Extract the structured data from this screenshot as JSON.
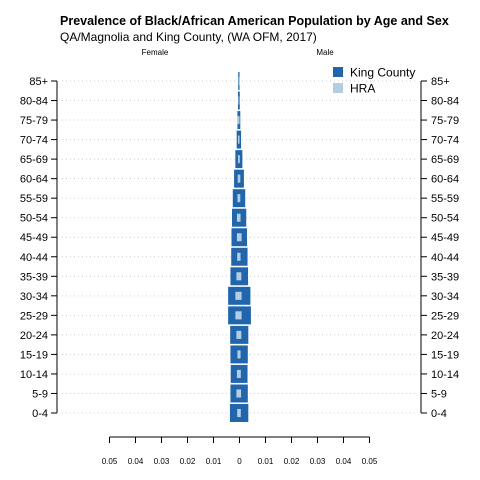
{
  "chart_data": {
    "type": "bar",
    "orientation": "horizontal-pyramid",
    "title": "Prevalence of Black/African American Population by Age and Sex",
    "subtitle": "QA/Magnolia and King County, (WA OFM, 2017)",
    "left_label": "Female",
    "right_label": "Male",
    "categories": [
      "0-4",
      "5-9",
      "10-14",
      "15-19",
      "20-24",
      "25-29",
      "30-34",
      "35-39",
      "40-44",
      "45-49",
      "50-54",
      "55-59",
      "60-64",
      "65-69",
      "70-74",
      "75-79",
      "80-84",
      "85+"
    ],
    "series": [
      {
        "name": "King County",
        "color": "#2166ac",
        "female": [
          0.0035,
          0.0033,
          0.0032,
          0.0033,
          0.0034,
          0.0042,
          0.0042,
          0.0033,
          0.003,
          0.0029,
          0.0027,
          0.0024,
          0.0019,
          0.0014,
          0.0009,
          0.0006,
          0.0004,
          0.0003
        ],
        "male": [
          0.0036,
          0.0034,
          0.0033,
          0.0034,
          0.0036,
          0.0046,
          0.0044,
          0.0035,
          0.0033,
          0.0031,
          0.0028,
          0.0024,
          0.0019,
          0.0013,
          0.0008,
          0.0005,
          0.0003,
          0.0002
        ]
      },
      {
        "name": "HRA",
        "color": "#b3cde3",
        "female": [
          0.0007,
          0.001,
          0.0008,
          0.0006,
          0.001,
          0.0014,
          0.0014,
          0.001,
          0.0007,
          0.0008,
          0.0008,
          0.0006,
          0.0005,
          0.0004,
          0.0004,
          0.0008,
          0.0002,
          0.0001
        ],
        "male": [
          0.0007,
          0.0008,
          0.0007,
          0.0006,
          0.0009,
          0.001,
          0.001,
          0.0009,
          0.0006,
          0.001,
          0.0006,
          0.0005,
          0.0005,
          0.0003,
          0.0002,
          0.0002,
          0.0001,
          0.0001
        ]
      }
    ],
    "x_ticks": [
      0.05,
      0.04,
      0.03,
      0.02,
      0.01,
      0,
      0.01,
      0.02,
      0.03,
      0.04,
      0.05
    ],
    "xlim": [
      -0.05,
      0.05
    ],
    "grid": "horizontal dotted",
    "legend": "top-right"
  }
}
